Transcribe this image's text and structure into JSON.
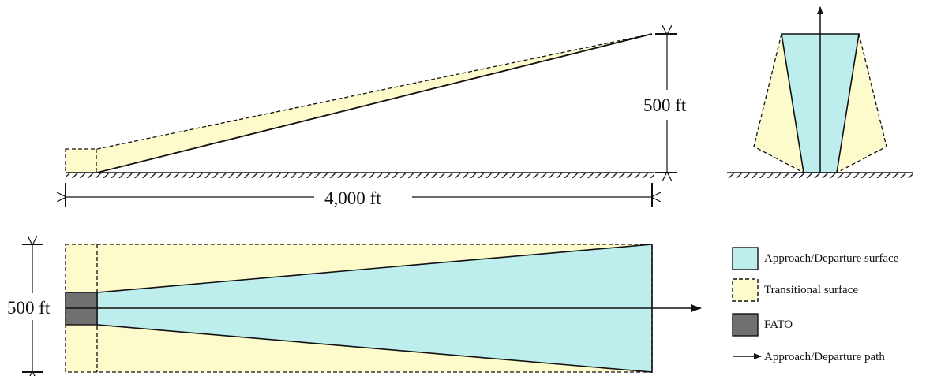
{
  "colors": {
    "approach_fill": "#bdeeed",
    "transitional_fill": "#fdfbcb",
    "fato_fill": "#707070",
    "line": "#111111"
  },
  "profile_view": {
    "height_label": "500 ft",
    "length_label": "4,000 ft"
  },
  "plan_view": {
    "width_label": "500 ft"
  },
  "legend": {
    "items": [
      {
        "icon": "approach-departure-surface-swatch",
        "label": "Approach/Departure surface"
      },
      {
        "icon": "transitional-surface-swatch",
        "label": "Transitional surface"
      },
      {
        "icon": "fato-swatch",
        "label": "FATO"
      },
      {
        "icon": "approach-departure-path-arrow-icon",
        "label": "Approach/Departure path"
      }
    ]
  }
}
